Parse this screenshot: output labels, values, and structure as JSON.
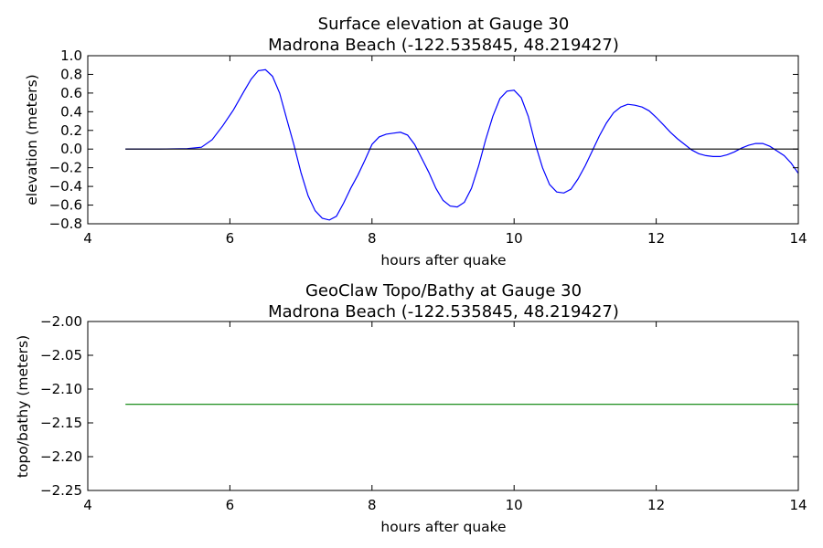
{
  "chart_data": [
    {
      "type": "line",
      "title_line1": "Surface elevation at Gauge 30",
      "title_line2": "Madrona Beach  (-122.535845, 48.219427)",
      "xlabel": "hours after quake",
      "ylabel": "elevation (meters)",
      "xlim": [
        4,
        14
      ],
      "ylim": [
        -0.8,
        1.0
      ],
      "xticks": [
        "4",
        "6",
        "8",
        "10",
        "12",
        "14"
      ],
      "yticks": [
        "−0.8",
        "−0.6",
        "−0.4",
        "−0.2",
        "0.0",
        "0.2",
        "0.4",
        "0.6",
        "0.8",
        "1.0"
      ],
      "grid": false,
      "series": [
        {
          "color": "#0000ff",
          "x": [
            4.53,
            5.0,
            5.4,
            5.6,
            5.75,
            5.9,
            6.05,
            6.2,
            6.3,
            6.4,
            6.5,
            6.6,
            6.7,
            6.8,
            6.9,
            7.0,
            7.1,
            7.2,
            7.3,
            7.4,
            7.5,
            7.6,
            7.7,
            7.8,
            7.9,
            8.0,
            8.1,
            8.2,
            8.3,
            8.4,
            8.5,
            8.6,
            8.7,
            8.8,
            8.9,
            9.0,
            9.1,
            9.2,
            9.3,
            9.4,
            9.5,
            9.6,
            9.7,
            9.8,
            9.9,
            10.0,
            10.1,
            10.2,
            10.3,
            10.4,
            10.5,
            10.6,
            10.7,
            10.8,
            10.9,
            11.0,
            11.1,
            11.2,
            11.3,
            11.4,
            11.5,
            11.6,
            11.7,
            11.8,
            11.9,
            12.0,
            12.1,
            12.2,
            12.3,
            12.4,
            12.5,
            12.6,
            12.7,
            12.8,
            12.9,
            13.0,
            13.1,
            13.2,
            13.3,
            13.4,
            13.5,
            13.6,
            13.7,
            13.8,
            13.9,
            14.0
          ],
          "y": [
            0.0,
            0.0,
            0.005,
            0.02,
            0.1,
            0.25,
            0.42,
            0.62,
            0.75,
            0.84,
            0.85,
            0.78,
            0.6,
            0.32,
            0.05,
            -0.25,
            -0.5,
            -0.66,
            -0.74,
            -0.76,
            -0.72,
            -0.58,
            -0.42,
            -0.28,
            -0.12,
            0.05,
            0.13,
            0.16,
            0.17,
            0.18,
            0.15,
            0.05,
            -0.1,
            -0.25,
            -0.42,
            -0.55,
            -0.61,
            -0.62,
            -0.57,
            -0.42,
            -0.18,
            0.1,
            0.35,
            0.54,
            0.62,
            0.63,
            0.55,
            0.35,
            0.05,
            -0.2,
            -0.38,
            -0.46,
            -0.47,
            -0.43,
            -0.32,
            -0.18,
            -0.02,
            0.14,
            0.28,
            0.39,
            0.45,
            0.48,
            0.47,
            0.45,
            0.41,
            0.34,
            0.26,
            0.18,
            0.11,
            0.05,
            -0.01,
            -0.05,
            -0.07,
            -0.08,
            -0.08,
            -0.06,
            -0.03,
            0.01,
            0.04,
            0.06,
            0.06,
            0.03,
            -0.02,
            -0.07,
            -0.15,
            -0.26
          ]
        },
        {
          "color": "#000000",
          "x": [
            4.53,
            14.0
          ],
          "y": [
            0.0,
            0.0
          ]
        }
      ]
    },
    {
      "type": "line",
      "title_line1": "GeoClaw Topo/Bathy at Gauge 30",
      "title_line2": "Madrona Beach  (-122.535845, 48.219427)",
      "xlabel": "hours after quake",
      "ylabel": "topo/bathy (meters)",
      "xlim": [
        4,
        14
      ],
      "ylim": [
        -2.25,
        -2.0
      ],
      "xticks": [
        "4",
        "6",
        "8",
        "10",
        "12",
        "14"
      ],
      "yticks": [
        "−2.25",
        "−2.20",
        "−2.15",
        "−2.10",
        "−2.05",
        "−2.00"
      ],
      "grid": false,
      "series": [
        {
          "color": "#008000",
          "x": [
            4.53,
            14.0
          ],
          "y": [
            -2.1225,
            -2.1225
          ]
        }
      ]
    }
  ]
}
